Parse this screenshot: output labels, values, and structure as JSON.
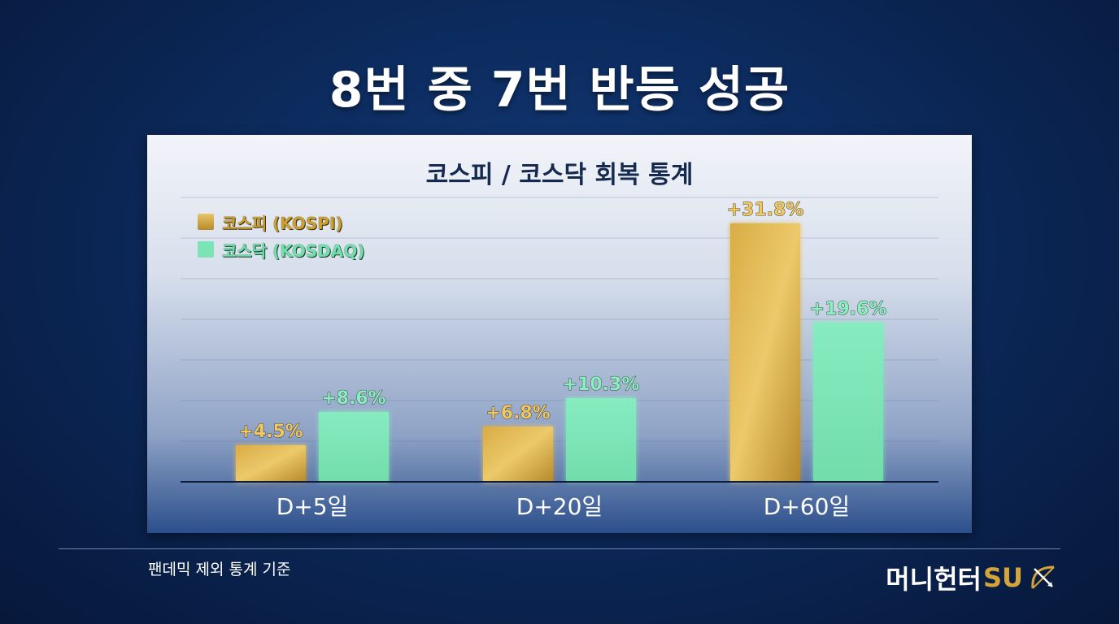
{
  "title": "8번 중 7번 반등 성공",
  "chart_data": {
    "type": "bar",
    "title": "코스피 / 코스닥 회복 통계",
    "categories": [
      "D+5일",
      "D+20일",
      "D+60일"
    ],
    "series": [
      {
        "name": "코스피 (KOSPI)",
        "values": [
          4.5,
          6.8,
          31.8
        ],
        "labels": [
          "+4.5%",
          "+6.8%",
          "+31.8%"
        ],
        "color": "#d4a84a",
        "label_color": "#f1c860"
      },
      {
        "name": "코스닥 (KOSDAQ)",
        "values": [
          8.6,
          10.3,
          19.6
        ],
        "labels": [
          "+8.6%",
          "+10.3%",
          "+19.6%"
        ],
        "color": "#7ee6b8",
        "label_color": "#8af0c0"
      }
    ],
    "ylim": [
      0,
      35
    ],
    "grid": true,
    "legend": "top-left"
  },
  "footnote": "팬데믹 제외 통계 기준",
  "brand": {
    "main": "머니헌터",
    "accent": "SU",
    "icon": "bow-arrow-icon"
  }
}
